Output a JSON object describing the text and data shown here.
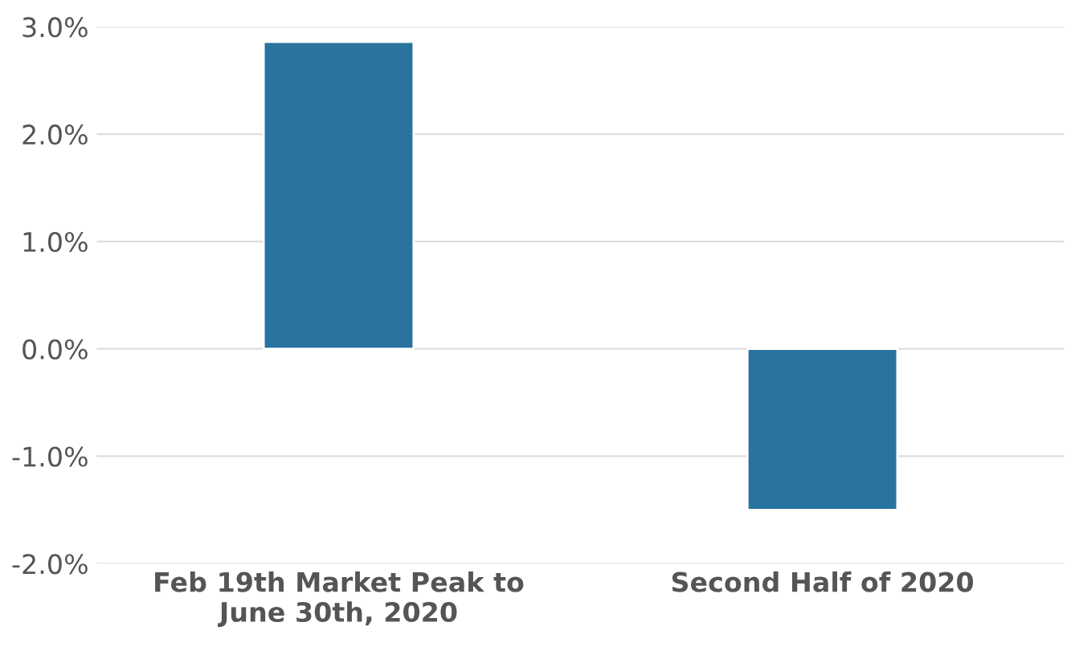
{
  "chart_data": {
    "type": "bar",
    "categories": [
      "Feb 19th Market Peak to\nJune 30th, 2020",
      "Second Half of 2020"
    ],
    "values": [
      2.86,
      -1.5
    ],
    "color": "#2a72a0",
    "ylim": [
      -2,
      3
    ],
    "yticks": [
      {
        "value": -2,
        "label": "-2.0%"
      },
      {
        "value": -1,
        "label": "-1.0%"
      },
      {
        "value": 0,
        "label": "0.0%"
      },
      {
        "value": 1,
        "label": "1.0%"
      },
      {
        "value": 2,
        "label": "2.0%"
      },
      {
        "value": 3,
        "label": "3.0%"
      }
    ],
    "grid": "y"
  }
}
